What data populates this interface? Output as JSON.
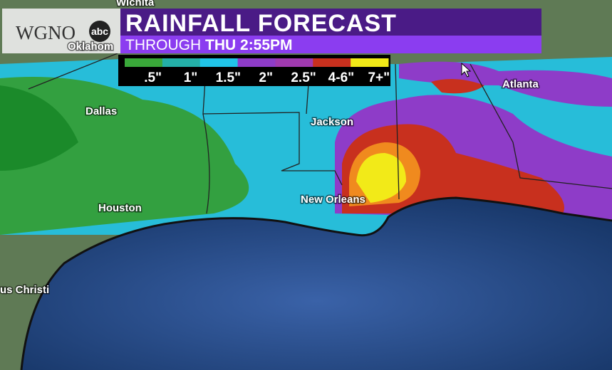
{
  "header": {
    "logo": "WGNO",
    "network": "abc",
    "title": "RAINFALL FORECAST",
    "subtitle_prefix": "THROUGH",
    "subtitle_time": "THU 2:55PM"
  },
  "legend": {
    "items": [
      {
        "label": ".5\"",
        "color": "#3aa83a"
      },
      {
        "label": "1\"",
        "color": "#24b0a8"
      },
      {
        "label": "1.5\"",
        "color": "#21c4e8"
      },
      {
        "label": "2\"",
        "color": "#8e3cc8"
      },
      {
        "label": "2.5\"",
        "color": "#a03ab0"
      },
      {
        "label": "4-6\"",
        "color": "#c8301e"
      },
      {
        "label": "7+\"",
        "color": "#f2ea18"
      }
    ]
  },
  "cities": [
    {
      "label": "Wichita"
    },
    {
      "label": "Oklahom"
    },
    {
      "label": "Dallas"
    },
    {
      "label": "Jackson"
    },
    {
      "label": "Atlanta"
    },
    {
      "label": "Houston"
    },
    {
      "label": "New Orleans"
    },
    {
      "label": "us Christi"
    }
  ]
}
